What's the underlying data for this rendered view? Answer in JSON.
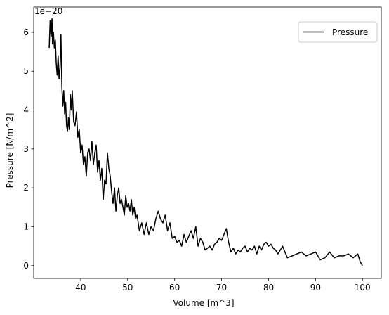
{
  "chart_data": {
    "type": "line",
    "xlabel": "Volume [m^3]",
    "ylabel": "Pressure [N/m^2]",
    "offset_label": "1e−20",
    "xlim": [
      30,
      104
    ],
    "ylim": [
      -0.33,
      6.65
    ],
    "x_ticks": [
      40,
      50,
      60,
      70,
      80,
      90,
      100
    ],
    "y_ticks": [
      0,
      1,
      2,
      3,
      4,
      5,
      6
    ],
    "legend": {
      "position": "upper right",
      "entries": [
        "Pressure"
      ]
    },
    "series": [
      {
        "name": "Pressure",
        "color": "#000000",
        "x": [
          33.3,
          33.5,
          33.7,
          33.9,
          34.0,
          34.2,
          34.4,
          34.6,
          34.8,
          35.0,
          35.2,
          35.4,
          35.6,
          35.8,
          36.0,
          36.2,
          36.4,
          36.6,
          36.8,
          37.0,
          37.2,
          37.4,
          37.6,
          37.8,
          38.0,
          38.2,
          38.5,
          38.8,
          39.1,
          39.4,
          39.7,
          40.0,
          40.3,
          40.6,
          40.9,
          41.2,
          41.5,
          41.8,
          42.1,
          42.4,
          42.7,
          43.0,
          43.3,
          43.6,
          43.9,
          44.2,
          44.5,
          44.8,
          45.1,
          45.4,
          45.7,
          46.0,
          46.3,
          46.6,
          46.9,
          47.2,
          47.5,
          47.8,
          48.1,
          48.4,
          48.7,
          49.0,
          49.3,
          49.6,
          49.9,
          50.2,
          50.5,
          50.8,
          51.1,
          51.4,
          51.7,
          52.0,
          52.5,
          53.0,
          53.5,
          54.0,
          54.5,
          55.0,
          55.5,
          56.0,
          56.5,
          57.0,
          57.5,
          58.0,
          58.5,
          59.0,
          59.5,
          60.0,
          60.5,
          61.0,
          61.5,
          62.0,
          62.5,
          63.0,
          63.5,
          64.0,
          64.5,
          65.0,
          65.5,
          66.0,
          66.5,
          67.0,
          67.5,
          68.0,
          68.5,
          69.0,
          69.5,
          70.0,
          70.5,
          71.0,
          71.5,
          72.0,
          72.5,
          73.0,
          73.5,
          74.0,
          74.5,
          75.0,
          75.5,
          76.0,
          76.5,
          77.0,
          77.5,
          78.0,
          78.5,
          79.0,
          79.5,
          80.0,
          80.5,
          81.0,
          81.5,
          82.0,
          83.0,
          84.0,
          85.0,
          86.0,
          87.0,
          88.0,
          89.0,
          90.0,
          91.0,
          92.0,
          93.0,
          94.0,
          95.0,
          96.0,
          97.0,
          98.0,
          99.0,
          99.5,
          100.0
        ],
        "y": [
          5.6,
          6.3,
          5.9,
          6.35,
          5.7,
          6.0,
          5.6,
          5.8,
          5.2,
          4.9,
          5.4,
          4.8,
          5.1,
          5.95,
          4.6,
          4.1,
          4.5,
          3.9,
          4.2,
          3.6,
          3.45,
          3.8,
          3.5,
          4.4,
          4.0,
          4.5,
          3.7,
          3.6,
          3.95,
          3.3,
          3.5,
          2.9,
          3.1,
          2.6,
          2.8,
          2.3,
          2.9,
          3.0,
          2.7,
          3.2,
          2.6,
          2.9,
          3.1,
          2.4,
          2.7,
          2.2,
          2.5,
          1.7,
          2.2,
          2.1,
          2.9,
          2.5,
          2.3,
          1.9,
          1.6,
          2.0,
          1.4,
          1.8,
          2.0,
          1.6,
          1.7,
          1.5,
          1.3,
          1.8,
          1.5,
          1.6,
          1.4,
          1.7,
          1.3,
          1.5,
          1.2,
          1.3,
          0.9,
          1.1,
          0.8,
          1.1,
          0.8,
          1.0,
          0.9,
          1.2,
          1.4,
          1.2,
          1.1,
          1.3,
          0.9,
          1.1,
          0.7,
          0.75,
          0.6,
          0.65,
          0.5,
          0.8,
          0.6,
          0.75,
          0.9,
          0.7,
          1.0,
          0.5,
          0.7,
          0.6,
          0.4,
          0.45,
          0.5,
          0.4,
          0.55,
          0.6,
          0.7,
          0.65,
          0.8,
          0.95,
          0.6,
          0.35,
          0.45,
          0.3,
          0.4,
          0.35,
          0.45,
          0.5,
          0.35,
          0.45,
          0.4,
          0.5,
          0.3,
          0.5,
          0.4,
          0.55,
          0.6,
          0.5,
          0.55,
          0.45,
          0.4,
          0.3,
          0.5,
          0.2,
          0.25,
          0.3,
          0.35,
          0.25,
          0.3,
          0.35,
          0.15,
          0.2,
          0.35,
          0.2,
          0.25,
          0.25,
          0.3,
          0.2,
          0.3,
          0.1,
          0.0
        ]
      }
    ]
  }
}
